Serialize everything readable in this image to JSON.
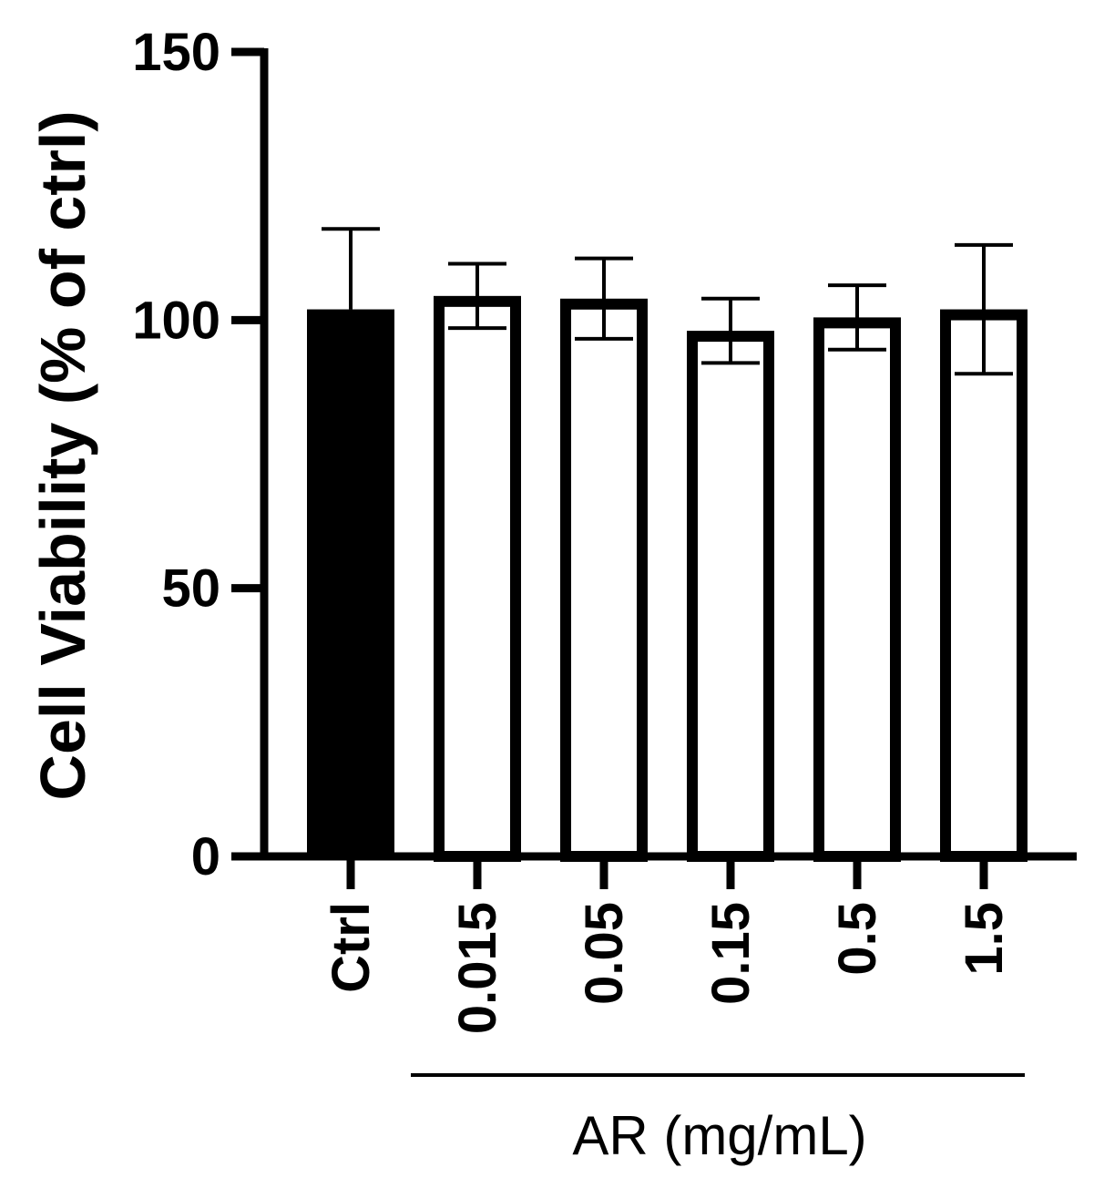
{
  "chart_data": {
    "type": "bar",
    "title": "",
    "xlabel": "",
    "ylabel": "Cell Viability (% of ctrl)",
    "group_label": "AR (mg/mL)",
    "ylim": [
      0,
      150
    ],
    "yticks": [
      "0",
      "50",
      "100",
      "150"
    ],
    "categories": [
      "Ctrl",
      "0.015",
      "0.05",
      "0.15",
      "0.5",
      "1.5"
    ],
    "values": [
      102,
      104.5,
      104,
      98,
      100.5,
      102
    ],
    "errors": [
      15,
      6,
      7.5,
      6,
      6,
      12
    ],
    "styles": [
      "filled",
      "outline",
      "outline",
      "outline",
      "outline",
      "outline"
    ],
    "grid": false,
    "colors": {
      "bar": "#000000",
      "axis": "#000000",
      "background": "#ffffff"
    }
  }
}
